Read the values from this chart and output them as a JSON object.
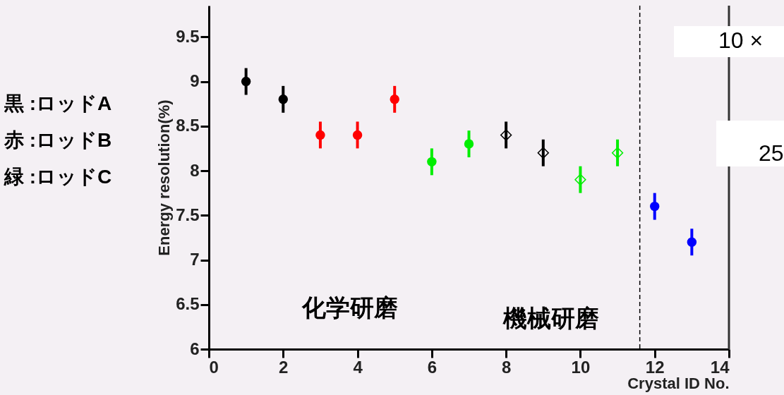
{
  "chart_data": {
    "type": "scatter",
    "xlabel": "Crystal ID No.",
    "ylabel": "Energy resolution(%)",
    "xlim": [
      0,
      14
    ],
    "xticks": [
      0,
      2,
      4,
      6,
      8,
      10,
      12,
      14
    ],
    "ylim": [
      6,
      9.85
    ],
    "yticks": [
      6,
      6.5,
      7,
      7.5,
      8,
      8.5,
      9,
      9.5
    ],
    "grid": false,
    "series": [
      {
        "color": "#000000",
        "marker": "circle",
        "x": [
          1,
          2
        ],
        "values": [
          9.0,
          8.8
        ],
        "errors": [
          0.15,
          0.15
        ]
      },
      {
        "color": "#ff0000",
        "marker": "circle",
        "x": [
          3,
          4,
          5
        ],
        "values": [
          8.4,
          8.4,
          8.8
        ],
        "errors": [
          0.15,
          0.15,
          0.15
        ]
      },
      {
        "color": "#00ee00",
        "marker": "circle",
        "x": [
          6,
          7
        ],
        "values": [
          8.1,
          8.3
        ],
        "errors": [
          0.15,
          0.15
        ]
      },
      {
        "color": "#000000",
        "marker": "diamond",
        "x": [
          8,
          9
        ],
        "values": [
          8.4,
          8.2
        ],
        "errors": [
          0.15,
          0.15
        ]
      },
      {
        "color": "#00ee00",
        "marker": "diamond",
        "x": [
          10,
          11
        ],
        "values": [
          7.9,
          8.2
        ],
        "errors": [
          0.15,
          0.15
        ]
      },
      {
        "color": "#0000ff",
        "marker": "circle",
        "x": [
          12,
          13
        ],
        "values": [
          7.6,
          7.2
        ],
        "errors": [
          0.15,
          0.15
        ]
      }
    ],
    "ref_lines": [
      {
        "axis": "x",
        "value": 11.6,
        "line_style": "dashed",
        "color": "#000000"
      }
    ],
    "annotations": [
      "黒 :ロッドA",
      "赤 :ロッドB",
      "緑 :ロッドC",
      "化学研磨",
      "機械研磨",
      "10 ×",
      "25"
    ]
  }
}
